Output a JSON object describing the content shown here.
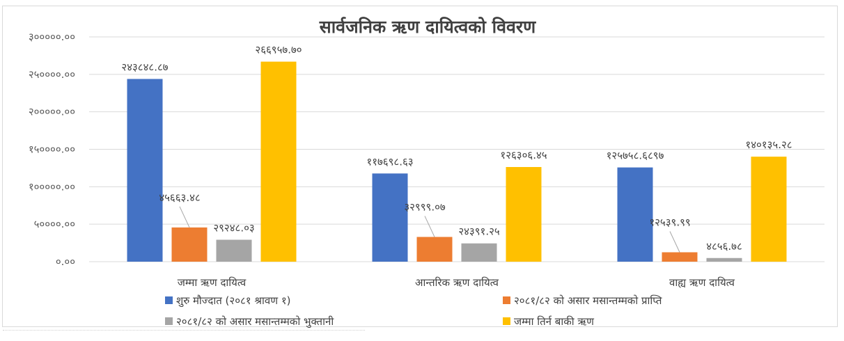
{
  "chart_data": {
    "type": "bar",
    "title": "सार्वजनिक ऋण दायित्वको विवरण",
    "categories": [
      "जम्मा ऋण दायित्व",
      "आन्तरिक ऋण दायित्व",
      "वाह्य ऋण दायित्व"
    ],
    "series": [
      {
        "name": "शुरु मौज्दात (२०८१ श्रावण १)",
        "color": "#4472c4",
        "values": [
          243848.87,
          117698.63,
          125758.6897
        ],
        "labels": [
          "२४३८४८.८७",
          "११७६९८.६३",
          "१२५७५८.६८९७"
        ]
      },
      {
        "name": "२०८१/८२ को असार मसान्तम्मको प्राप्ति",
        "color": "#ed7d31",
        "values": [
          45663.48,
          32999.07,
          12539.99
        ],
        "labels": [
          "४५६६३.४८",
          "३२९९९.०७",
          "१२५३९.९९"
        ]
      },
      {
        "name": "२०८१/८२ को असार मसान्तम्मको भुक्तानी",
        "color": "#a5a5a5",
        "values": [
          29248.03,
          24391.25,
          4856.78
        ],
        "labels": [
          "२९२४८.०३",
          "२४३९१.२५",
          "४८५६.७८"
        ]
      },
      {
        "name": "जम्मा तिर्न बाकी ऋण",
        "color": "#ffc000",
        "values": [
          266957.7,
          126306.45,
          140135.28
        ],
        "labels": [
          "२६६९५७.७०",
          "१२६३०६.४५",
          "१४०१३५.२८"
        ]
      }
    ],
    "ylim": [
      0,
      300000
    ],
    "yticks": [
      0,
      50000,
      100000,
      150000,
      200000,
      250000,
      300000
    ],
    "ytick_labels": [
      "०.००",
      "५००००.००",
      "१०००००.००",
      "१५००००.००",
      "२०००००.००",
      "२५००००.००",
      "३०००००.००"
    ],
    "grid": true,
    "legend_position": "bottom"
  }
}
